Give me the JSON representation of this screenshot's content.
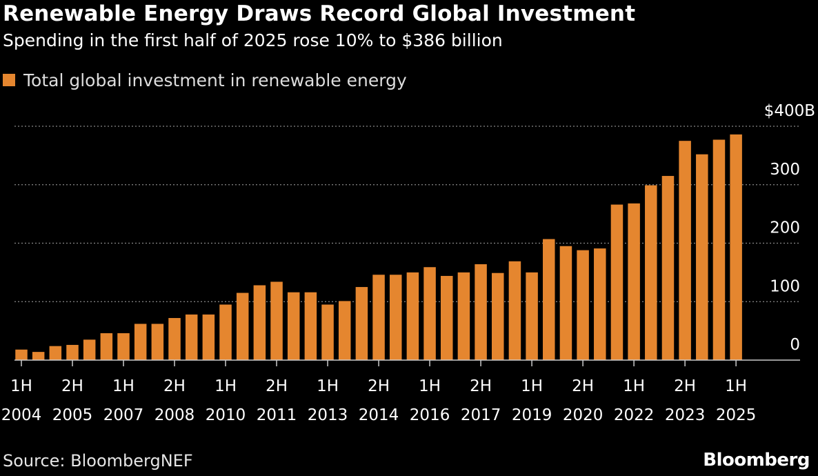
{
  "title": "Renewable Energy Draws Record Global Investment",
  "subtitle": "Spending in the first half of 2025 rose 10% to $386 billion",
  "legend": {
    "label": "Total global investment in renewable energy"
  },
  "source": "Source: BloombergNEF",
  "brand": "Bloomberg",
  "colors": {
    "bar": "#e5862f",
    "grid": "#8a8a8a",
    "axis": "#cccccc",
    "background": "#000000"
  },
  "chart_data": {
    "type": "bar",
    "ylim": [
      0,
      400
    ],
    "yticks": [
      {
        "value": 400,
        "label": "$400B"
      },
      {
        "value": 300,
        "label": "300"
      },
      {
        "value": 200,
        "label": "200"
      },
      {
        "value": 100,
        "label": "100"
      },
      {
        "value": 0,
        "label": "0"
      }
    ],
    "grid": true,
    "legend_position": "top-left",
    "categories": [
      "1H 2004",
      "2H 2004",
      "1H 2005",
      "2H 2005",
      "1H 2006",
      "2H 2006",
      "1H 2007",
      "2H 2007",
      "1H 2008",
      "2H 2008",
      "1H 2009",
      "2H 2009",
      "1H 2010",
      "2H 2010",
      "1H 2011",
      "2H 2011",
      "1H 2012",
      "2H 2012",
      "1H 2013",
      "2H 2013",
      "1H 2014",
      "2H 2014",
      "1H 2015",
      "2H 2015",
      "1H 2016",
      "2H 2016",
      "1H 2017",
      "2H 2017",
      "1H 2018",
      "2H 2018",
      "1H 2019",
      "2H 2019",
      "1H 2020",
      "2H 2020",
      "1H 2021",
      "2H 2021",
      "1H 2022",
      "2H 2022",
      "1H 2023",
      "2H 2023",
      "1H 2024",
      "2H 2024",
      "1H 2025"
    ],
    "values": [
      18,
      14,
      24,
      26,
      35,
      46,
      46,
      62,
      62,
      72,
      78,
      78,
      95,
      115,
      128,
      134,
      116,
      116,
      95,
      101,
      125,
      146,
      146,
      150,
      159,
      144,
      150,
      164,
      149,
      169,
      150,
      207,
      195,
      188,
      191,
      266,
      268,
      299,
      315,
      375,
      352,
      377,
      386
    ],
    "xticks": [
      {
        "index": 0,
        "period": "1H",
        "year": "2004"
      },
      {
        "index": 3,
        "period": "2H",
        "year": "2005"
      },
      {
        "index": 6,
        "period": "1H",
        "year": "2007"
      },
      {
        "index": 9,
        "period": "2H",
        "year": "2008"
      },
      {
        "index": 12,
        "period": "1H",
        "year": "2010"
      },
      {
        "index": 15,
        "period": "2H",
        "year": "2011"
      },
      {
        "index": 18,
        "period": "1H",
        "year": "2013"
      },
      {
        "index": 21,
        "period": "2H",
        "year": "2014"
      },
      {
        "index": 24,
        "period": "1H",
        "year": "2016"
      },
      {
        "index": 27,
        "period": "2H",
        "year": "2017"
      },
      {
        "index": 30,
        "period": "1H",
        "year": "2019"
      },
      {
        "index": 33,
        "period": "2H",
        "year": "2020"
      },
      {
        "index": 36,
        "period": "1H",
        "year": "2022"
      },
      {
        "index": 39,
        "period": "2H",
        "year": "2023"
      },
      {
        "index": 42,
        "period": "1H",
        "year": "2025"
      }
    ]
  }
}
